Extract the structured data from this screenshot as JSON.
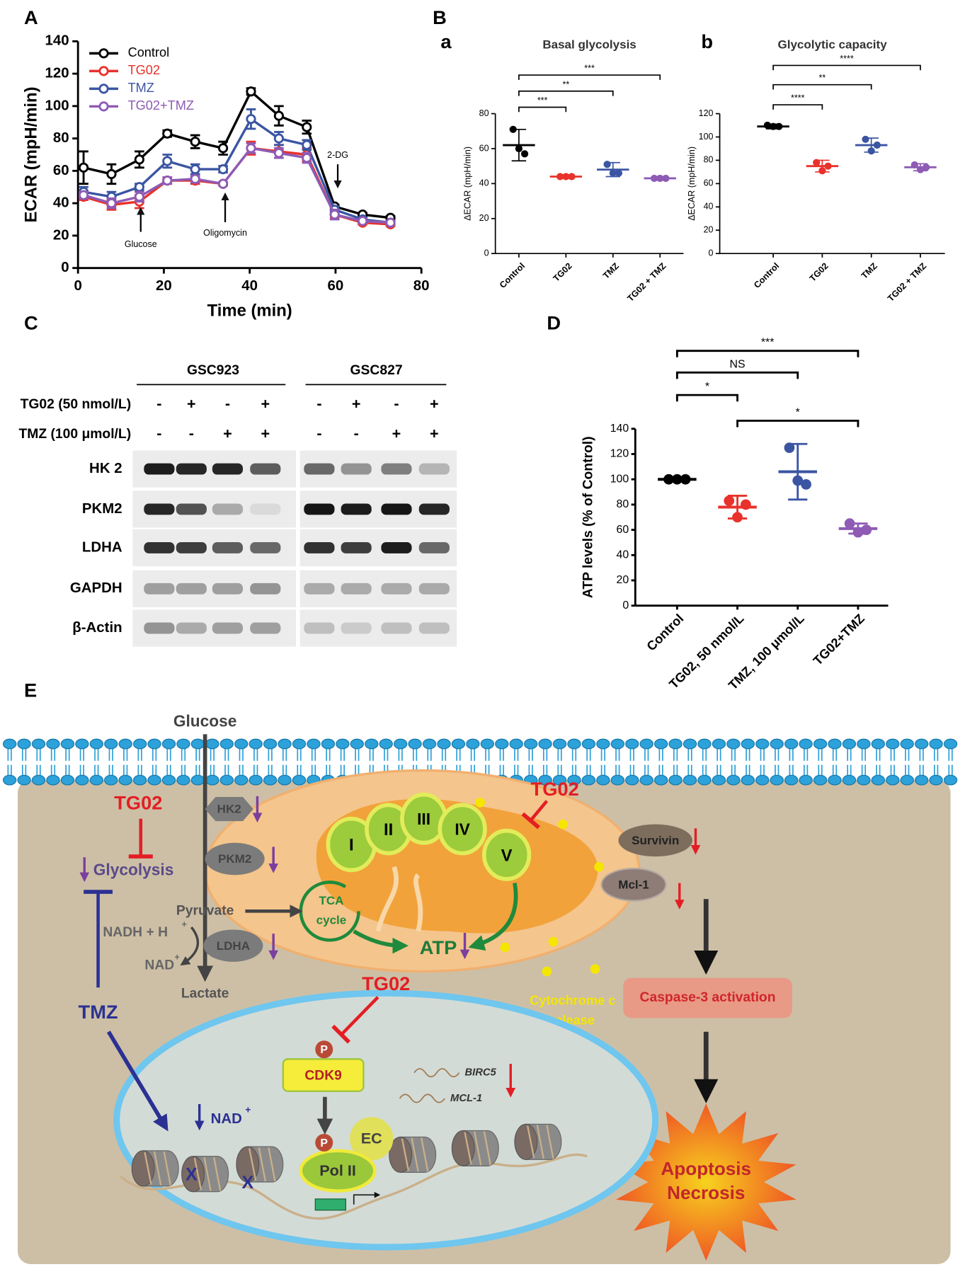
{
  "panel_labels": [
    "A",
    "B",
    "a",
    "b",
    "C",
    "D",
    "E"
  ],
  "chart_data": [
    {
      "type": "line",
      "xlabel": "Time (min)",
      "ylabel": "ECAR (mpH/min)",
      "x": [
        1.3,
        7.8,
        14.3,
        20.8,
        27.3,
        33.8,
        40.3,
        46.8,
        53.3,
        59.8,
        66.3,
        72.8
      ],
      "xlim": [
        0,
        80
      ],
      "xticks": [
        0,
        20,
        40,
        60,
        80
      ],
      "ylim": [
        0,
        140
      ],
      "yticks": [
        0,
        20,
        40,
        60,
        80,
        100,
        120,
        140
      ],
      "legend": "top-left",
      "series": [
        {
          "name": "Control",
          "color": "#000000",
          "values": [
            62,
            58,
            67,
            83,
            78,
            74,
            109,
            94,
            87,
            38,
            33,
            31
          ],
          "errors": [
            10,
            6,
            5,
            2,
            4,
            4,
            2,
            6,
            4,
            1,
            1,
            1
          ]
        },
        {
          "name": "TG02",
          "color": "#e8322b",
          "values": [
            44,
            39,
            41,
            54,
            54,
            52,
            74,
            72,
            70,
            33,
            28,
            27
          ],
          "errors": [
            2,
            3,
            4,
            2,
            2,
            1,
            4,
            4,
            4,
            2,
            1,
            1
          ]
        },
        {
          "name": "TMZ",
          "color": "#3b55a3",
          "values": [
            47,
            44,
            50,
            66,
            61,
            61,
            92,
            80,
            76,
            36,
            30,
            28
          ],
          "errors": [
            3,
            3,
            2,
            4,
            3,
            2,
            6,
            4,
            3,
            2,
            1,
            1
          ]
        },
        {
          "name": "TG02+TMZ",
          "color": "#8e5bb5",
          "values": [
            45,
            40,
            44,
            54,
            55,
            52,
            74,
            71,
            68,
            33,
            29,
            28
          ],
          "errors": [
            2,
            3,
            3,
            2,
            2,
            1,
            3,
            3,
            3,
            3,
            1,
            1
          ]
        }
      ],
      "annotations": [
        "Glucose",
        "Oligomycin",
        "2-DG"
      ]
    },
    {
      "type": "dotplot",
      "title": "Basal glycolysis",
      "ylabel": "ΔECAR (mpH/min)",
      "categories": [
        "Control",
        "TG02",
        "TMZ",
        "TG02 + TMZ"
      ],
      "colors": [
        "#000000",
        "#e8322b",
        "#3b55a3",
        "#8e5bb5"
      ],
      "means": [
        62,
        44,
        48,
        43
      ],
      "sd": [
        9,
        1,
        4,
        1
      ],
      "points": [
        [
          71,
          60,
          57
        ],
        [
          44,
          44,
          44
        ],
        [
          51,
          46,
          46
        ],
        [
          43,
          43,
          43
        ]
      ],
      "ylim": [
        0,
        80
      ],
      "yticks": [
        0,
        20,
        40,
        60,
        80
      ],
      "brackets": [
        {
          "from": "Control",
          "to": "TG02",
          "label": "***"
        },
        {
          "from": "Control",
          "to": "TMZ",
          "label": "**"
        },
        {
          "from": "Control",
          "to": "TG02 + TMZ",
          "label": "***"
        }
      ]
    },
    {
      "type": "dotplot",
      "title": "Glycolytic capacity",
      "ylabel": "ΔECAR (mpH/min)",
      "categories": [
        "Control",
        "TG02",
        "TMZ",
        "TG02 + TMZ"
      ],
      "colors": [
        "#000000",
        "#e8322b",
        "#3b55a3",
        "#8e5bb5"
      ],
      "means": [
        109,
        75,
        93,
        74
      ],
      "sd": [
        2,
        5,
        6,
        3
      ],
      "points": [
        [
          110,
          109,
          109
        ],
        [
          78,
          71,
          75
        ],
        [
          98,
          88,
          93
        ],
        [
          76,
          72,
          74
        ]
      ],
      "ylim": [
        0,
        120
      ],
      "yticks": [
        0,
        20,
        40,
        60,
        80,
        100,
        120
      ],
      "brackets": [
        {
          "from": "Control",
          "to": "TG02",
          "label": "****"
        },
        {
          "from": "Control",
          "to": "TMZ",
          "label": "**"
        },
        {
          "from": "Control",
          "to": "TG02 + TMZ",
          "label": "****"
        }
      ]
    },
    {
      "type": "dotplot",
      "ylabel": "ATP levels (% of Control)",
      "categories": [
        "Control",
        "TG02, 50 nmol/L",
        "TMZ, 100 μmol/L",
        "TG02+TMZ"
      ],
      "colors": [
        "#000000",
        "#e8322b",
        "#3b55a3",
        "#8e5bb5"
      ],
      "means": [
        100,
        78,
        106,
        61
      ],
      "sd": [
        0.5,
        9,
        22,
        4
      ],
      "points": [
        [
          100,
          100,
          100
        ],
        [
          83,
          70,
          80
        ],
        [
          125,
          99,
          96
        ],
        [
          65,
          58,
          60
        ]
      ],
      "ylim": [
        0,
        140
      ],
      "yticks": [
        0,
        20,
        40,
        60,
        80,
        100,
        120,
        140
      ],
      "brackets": [
        {
          "from": "Control",
          "to": "TG02+TMZ",
          "label": "***"
        },
        {
          "from": "Control",
          "to": "TMZ, 100 μmol/L",
          "label": "NS"
        },
        {
          "from": "Control",
          "to": "TG02, 50 nmol/L",
          "label": "*"
        },
        {
          "from": "TG02, 50 nmol/L",
          "to": "TG02+TMZ",
          "label": "*"
        }
      ]
    }
  ],
  "blot": {
    "cell_lines": [
      "GSC923",
      "GSC827"
    ],
    "treatments": [
      {
        "name": "TG02 (50 nmol/L)",
        "signs": [
          "-",
          "+",
          "-",
          "+",
          "-",
          "+",
          "-",
          "+"
        ]
      },
      {
        "name": "TMZ (100 μmol/L)",
        "signs": [
          "-",
          "-",
          "+",
          "+",
          "-",
          "-",
          "+",
          "+"
        ]
      }
    ],
    "proteins": [
      "HK 2",
      "PKM2",
      "LDHA",
      "GAPDH",
      "β-Actin"
    ]
  },
  "diagram": {
    "glucose": "Glucose",
    "hk2": "HK2",
    "pkm2": "PKM2",
    "ldha": "LDHA",
    "pyruvate": "Pyruvate",
    "nadh": "NADH + H",
    "nadh_sup": "+",
    "nad": "NAD",
    "nad_sup": "+",
    "lactate": "Lactate",
    "tg02": [
      "TG02",
      "TG02",
      "TG02",
      "TG02"
    ],
    "glycolysis": "Glycolysis",
    "tmz": "TMZ",
    "complexes": [
      "I",
      "II",
      "III",
      "IV",
      "V"
    ],
    "tca": [
      "TCA",
      "cycle"
    ],
    "atp": "ATP",
    "survivin": "Survivin",
    "mcl1": "Mcl-1",
    "cytochrome": [
      "Cytochrome c",
      "release"
    ],
    "caspase": "Caspase-3 activation",
    "outcome": [
      "Apoptosis",
      "Necrosis"
    ],
    "cdk9": "CDK9",
    "phospho": [
      "P",
      "P"
    ],
    "ec": "EC",
    "pol2": "Pol II",
    "genes": [
      "BIRC5",
      "MCL-1"
    ],
    "nuclear_nad": "NAD",
    "nuclear_nad_sup": "+",
    "blocks": [
      "X",
      "X"
    ]
  }
}
